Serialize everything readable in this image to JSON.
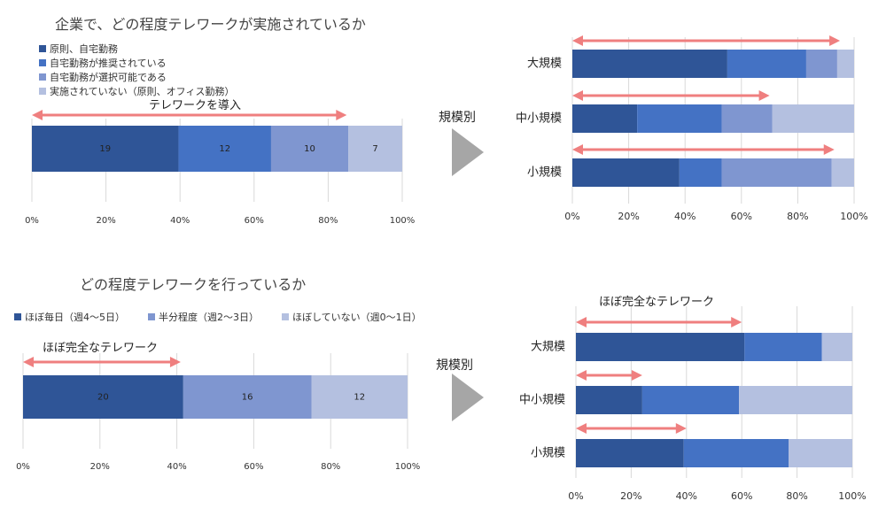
{
  "colors": {
    "dark": "#2f5597",
    "mid": "#4472c4",
    "lightmid": "#7f96d0",
    "light": "#b4c0e0",
    "arrow": "#ef7f7f",
    "grid": "#d9d9d9",
    "triangle": "#a6a6a6"
  },
  "top": {
    "title": "企業で、どの程度テレワークが実施されているか",
    "legend": [
      {
        "label": "原則、自宅勤務",
        "color": "#2f5597"
      },
      {
        "label": "自宅勤務が推奨されている",
        "color": "#4472c4"
      },
      {
        "label": "自宅勤務が選択可能である",
        "color": "#7f96d0"
      },
      {
        "label": "実施されていない（原則、オフィス勤務）",
        "color": "#b4c0e0"
      }
    ],
    "arrow_label": "テレワークを導入",
    "by_size_label": "規模別"
  },
  "bottom": {
    "title": "どの程度テレワークを行っているか",
    "legend": [
      {
        "label": "ほぼ毎日（週4〜5日）",
        "color": "#2f5597"
      },
      {
        "label": "半分程度（週2〜3日）",
        "color": "#7f96d0"
      },
      {
        "label": "ほぼしていない（週0〜1日）",
        "color": "#b4c0e0"
      }
    ],
    "arrow_label": "ほぼ完全なテレワーク",
    "right_arrow_label": "ほぼ完全なテレワーク",
    "by_size_label": "規模別"
  },
  "chart_data": [
    {
      "id": "top-left",
      "type": "bar",
      "orientation": "horizontal-stacked",
      "x_ticks": [
        "0%",
        "20%",
        "40%",
        "60%",
        "80%",
        "100%"
      ],
      "xlim": [
        0,
        48
      ],
      "series": [
        {
          "name": "原則、自宅勤務",
          "values": [
            19
          ]
        },
        {
          "name": "自宅勤務が推奨されている",
          "values": [
            12
          ]
        },
        {
          "name": "自宅勤務が選択可能である",
          "values": [
            10
          ]
        },
        {
          "name": "実施されていない（原則、オフィス勤務）",
          "values": [
            7
          ]
        }
      ],
      "data_labels": [
        "19",
        "12",
        "10",
        "7"
      ],
      "arrow_to": 85
    },
    {
      "id": "top-right",
      "type": "bar",
      "orientation": "horizontal-stacked",
      "categories": [
        "大規模",
        "中小規模",
        "小規模"
      ],
      "x_ticks": [
        "0%",
        "20%",
        "40%",
        "60%",
        "80%",
        "100%"
      ],
      "xlim": [
        0,
        100
      ],
      "series": [
        {
          "name": "原則、自宅勤務",
          "values": [
            55,
            23,
            38
          ]
        },
        {
          "name": "自宅勤務が推奨されている",
          "values": [
            28,
            30,
            15
          ]
        },
        {
          "name": "自宅勤務が選択可能である",
          "values": [
            11,
            18,
            39
          ]
        },
        {
          "name": "実施されていない（原則、オフィス勤務）",
          "values": [
            6,
            29,
            8
          ]
        }
      ],
      "arrow_to": [
        95,
        70,
        93
      ]
    },
    {
      "id": "bottom-left",
      "type": "bar",
      "orientation": "horizontal-stacked",
      "x_ticks": [
        "0%",
        "20%",
        "40%",
        "60%",
        "80%",
        "100%"
      ],
      "xlim": [
        0,
        48
      ],
      "series": [
        {
          "name": "ほぼ毎日（週4〜5日）",
          "values": [
            20
          ]
        },
        {
          "name": "半分程度（週2〜3日）",
          "values": [
            16
          ]
        },
        {
          "name": "ほぼしていない（週0〜1日）",
          "values": [
            12
          ]
        }
      ],
      "data_labels": [
        "20",
        "16",
        "12"
      ],
      "arrow_to": 41
    },
    {
      "id": "bottom-right",
      "type": "bar",
      "orientation": "horizontal-stacked",
      "categories": [
        "大規模",
        "中小規模",
        "小規模"
      ],
      "x_ticks": [
        "0%",
        "20%",
        "40%",
        "60%",
        "80%",
        "100%"
      ],
      "xlim": [
        0,
        100
      ],
      "series": [
        {
          "name": "ほぼ毎日（週4〜5日）",
          "values": [
            61,
            24,
            39
          ]
        },
        {
          "name": "半分程度（週2〜3日）",
          "values": [
            28,
            35,
            38
          ]
        },
        {
          "name": "ほぼしていない（週0〜1日）",
          "values": [
            11,
            41,
            23
          ]
        }
      ],
      "arrow_to": [
        60,
        24,
        40
      ]
    }
  ]
}
